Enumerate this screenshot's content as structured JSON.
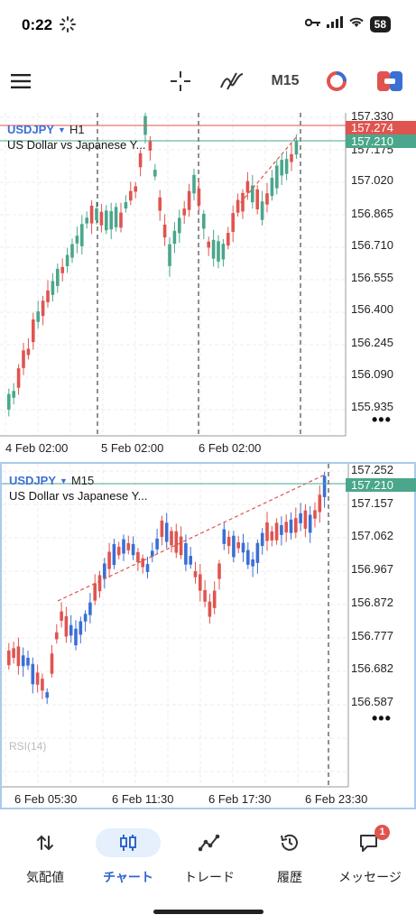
{
  "status_bar": {
    "time": "0:22",
    "battery": "58"
  },
  "toolbar": {
    "timeframe": "M15"
  },
  "chart_h1": {
    "symbol": "USDJPY",
    "timeframe": "H1",
    "description": "US Dollar vs Japanese Y...",
    "price_labels": [
      "157.330",
      "157.175",
      "157.020",
      "156.865",
      "156.710",
      "156.555",
      "156.400",
      "156.245",
      "156.090",
      "155.935"
    ],
    "tag_ask": "157.274",
    "tag_bid": "157.210",
    "time_labels": [
      "4 Feb 02:00",
      "5 Feb 02:00",
      "6 Feb 02:00"
    ]
  },
  "chart_m15": {
    "symbol": "USDJPY",
    "timeframe": "M15",
    "description": "US Dollar vs Japanese Y...",
    "price_labels": [
      "157.252",
      "157.157",
      "157.062",
      "156.967",
      "156.872",
      "156.777",
      "156.682",
      "156.587"
    ],
    "tag_bid": "157.210",
    "indicator": "RSI(14)",
    "time_labels": [
      "6 Feb 05:30",
      "6 Feb 11:30",
      "6 Feb 17:30",
      "6 Feb 23:30"
    ]
  },
  "colors": {
    "up_h1": "#4aa78b",
    "up_m15": "#3a6fd4",
    "down": "#e0544f"
  },
  "nav": {
    "items": [
      {
        "label": "気配値",
        "icon": "swap-icon"
      },
      {
        "label": "チャート",
        "icon": "candles-icon"
      },
      {
        "label": "トレード",
        "icon": "trade-icon"
      },
      {
        "label": "履歴",
        "icon": "history-icon"
      },
      {
        "label": "メッセージ",
        "icon": "message-icon"
      }
    ],
    "message_badge": "1"
  }
}
